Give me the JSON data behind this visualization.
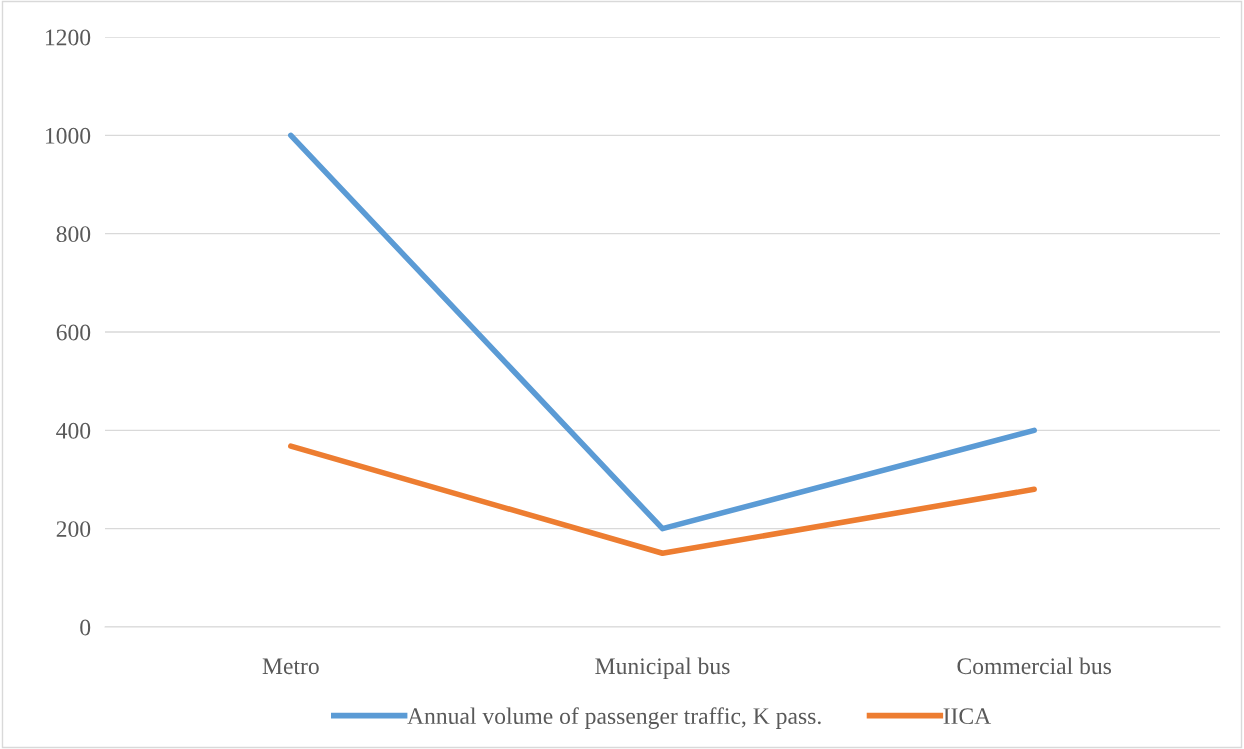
{
  "chart_data": {
    "type": "line",
    "categories": [
      "Metro",
      "Municipal bus",
      "Commercial bus"
    ],
    "series": [
      {
        "name": "Annual volume of passenger traffic, K pass.",
        "color": "#5b9bd5",
        "values": [
          1000,
          200,
          400
        ]
      },
      {
        "name": "IICA",
        "color": "#ed7d31",
        "values": [
          368,
          150,
          280
        ]
      }
    ],
    "ylim": [
      0,
      1200
    ],
    "yticks": [
      0,
      200,
      400,
      600,
      800,
      1000,
      1200
    ],
    "grid": "y",
    "legend": "bottom",
    "marker": "none",
    "line_style": "solid"
  }
}
